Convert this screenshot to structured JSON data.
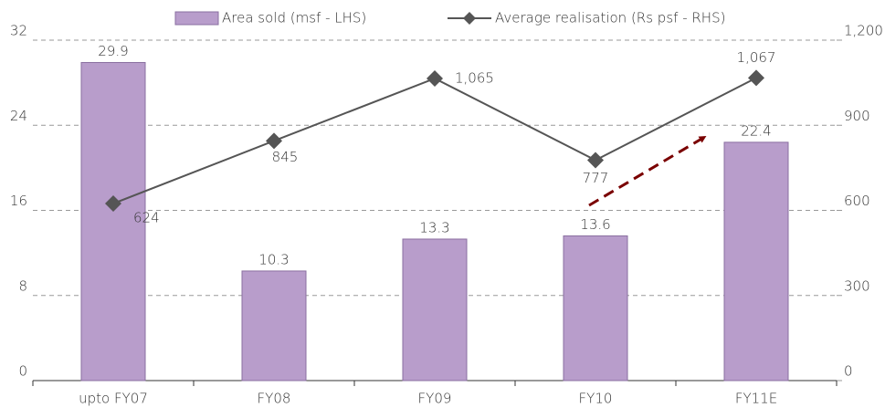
{
  "chart_data": {
    "type": "bar",
    "categories": [
      "upto FY07",
      "FY08",
      "FY09",
      "FY10",
      "FY11E"
    ],
    "series": [
      {
        "name": "Area sold (msf - LHS)",
        "type": "bar",
        "color": "#b89dcb",
        "values": [
          29.9,
          10.3,
          13.3,
          13.6,
          22.4
        ]
      },
      {
        "name": "Average realisation (Rs psf - RHS)",
        "type": "line",
        "axis": "y2",
        "color": "#555555",
        "values": [
          624,
          845,
          1065,
          777,
          1067
        ],
        "value_labels": [
          "624",
          "845",
          "1,065",
          "777",
          "1,067"
        ]
      }
    ],
    "ylim": [
      0,
      32
    ],
    "yticks": [
      0,
      8,
      16,
      24,
      32
    ],
    "y2lim": [
      0,
      1200
    ],
    "y2ticks": [
      0,
      300,
      600,
      900,
      {
        "value": 1200,
        "label": "1,200"
      }
    ],
    "grid": true
  }
}
